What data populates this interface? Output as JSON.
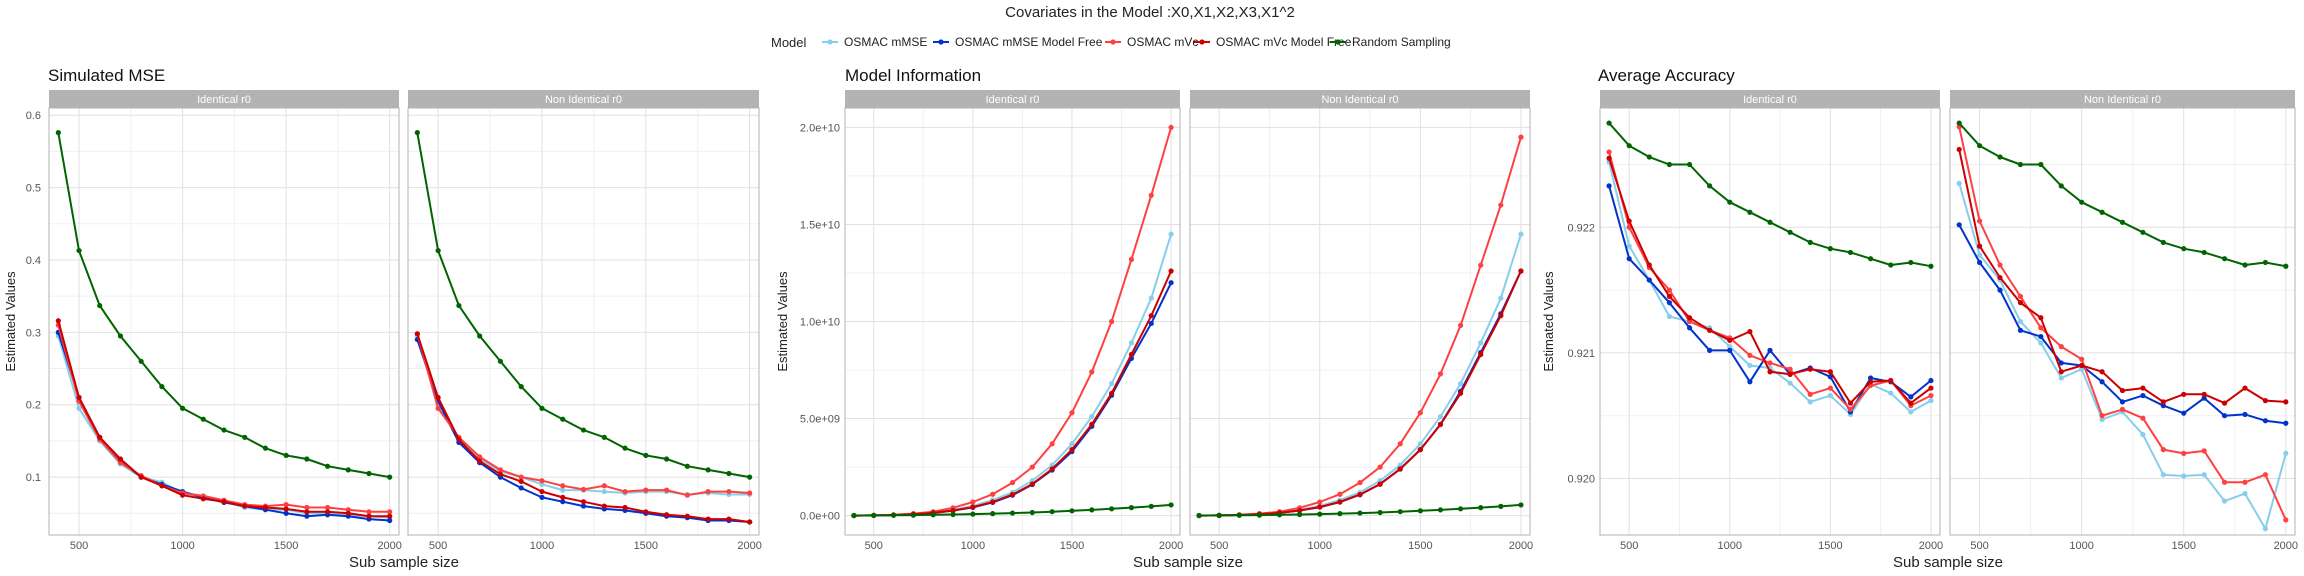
{
  "figure": {
    "title": "Covariates in the Model :X0,X1,X2,X3,X1^2",
    "legend_title": "Model",
    "series": [
      {
        "name": "OSMAC mMSE",
        "color": "#87ceeb"
      },
      {
        "name": "OSMAC mMSE Model Free",
        "color": "#0033cc"
      },
      {
        "name": "OSMAC mVc",
        "color": "#ff4040"
      },
      {
        "name": "OSMAC mVc Model Free",
        "color": "#cc0000"
      },
      {
        "name": "Random Sampling",
        "color": "#006400"
      }
    ]
  },
  "chart_data": [
    {
      "type": "line",
      "title": "Simulated MSE",
      "xlabel": "Sub sample size",
      "ylabel": "Estimated Values",
      "ylim": [
        0.02,
        0.61
      ],
      "yticks": [
        0.1,
        0.2,
        0.3,
        0.4,
        0.5,
        0.6
      ],
      "ytick_labels": [
        "0.1",
        "0.2",
        "0.3",
        "0.4",
        "0.5",
        "0.6"
      ],
      "xlim": [
        355,
        2045
      ],
      "xticks": [
        500,
        1000,
        1500,
        2000
      ],
      "x": [
        400,
        500,
        600,
        700,
        800,
        900,
        1000,
        1100,
        1200,
        1300,
        1400,
        1500,
        1600,
        1700,
        1800,
        1900,
        2000
      ],
      "facets": [
        {
          "strip": "Identical r0",
          "series": [
            {
              "name": "OSMAC mMSE",
              "values": [
                0.295,
                0.195,
                0.15,
                0.118,
                0.1,
                0.093,
                0.078,
                0.072,
                0.066,
                0.058,
                0.055,
                0.055,
                0.05,
                0.05,
                0.048,
                0.046,
                0.044
              ]
            },
            {
              "name": "OSMAC mMSE Model Free",
              "values": [
                0.3,
                0.21,
                0.155,
                0.122,
                0.1,
                0.09,
                0.08,
                0.072,
                0.065,
                0.06,
                0.055,
                0.05,
                0.046,
                0.048,
                0.046,
                0.042,
                0.04
              ]
            },
            {
              "name": "OSMAC mVc",
              "values": [
                0.31,
                0.205,
                0.152,
                0.12,
                0.102,
                0.088,
                0.078,
                0.074,
                0.068,
                0.062,
                0.06,
                0.062,
                0.058,
                0.058,
                0.055,
                0.052,
                0.052
              ]
            },
            {
              "name": "OSMAC mVc Model Free",
              "values": [
                0.316,
                0.21,
                0.155,
                0.125,
                0.1,
                0.088,
                0.075,
                0.07,
                0.066,
                0.06,
                0.058,
                0.056,
                0.052,
                0.052,
                0.05,
                0.046,
                0.046
              ]
            },
            {
              "name": "Random Sampling",
              "values": [
                0.576,
                0.413,
                0.337,
                0.295,
                0.26,
                0.225,
                0.195,
                0.18,
                0.165,
                0.155,
                0.14,
                0.13,
                0.125,
                0.115,
                0.11,
                0.105,
                0.1
              ]
            }
          ]
        },
        {
          "strip": "Non Identical r0",
          "series": [
            {
              "name": "OSMAC mMSE",
              "values": [
                0.295,
                0.2,
                0.15,
                0.125,
                0.108,
                0.1,
                0.09,
                0.082,
                0.082,
                0.08,
                0.078,
                0.08,
                0.08,
                0.076,
                0.078,
                0.076,
                0.076
              ]
            },
            {
              "name": "OSMAC mMSE Model Free",
              "values": [
                0.29,
                0.205,
                0.148,
                0.12,
                0.1,
                0.085,
                0.072,
                0.066,
                0.06,
                0.056,
                0.054,
                0.05,
                0.046,
                0.044,
                0.04,
                0.04,
                0.038
              ]
            },
            {
              "name": "OSMAC mVc",
              "values": [
                0.298,
                0.195,
                0.155,
                0.128,
                0.11,
                0.1,
                0.095,
                0.088,
                0.083,
                0.088,
                0.08,
                0.082,
                0.082,
                0.075,
                0.08,
                0.08,
                0.078
              ]
            },
            {
              "name": "OSMAC mVc Model Free",
              "values": [
                0.298,
                0.21,
                0.152,
                0.122,
                0.104,
                0.094,
                0.08,
                0.072,
                0.066,
                0.06,
                0.058,
                0.052,
                0.048,
                0.046,
                0.042,
                0.042,
                0.038
              ]
            },
            {
              "name": "Random Sampling",
              "values": [
                0.576,
                0.413,
                0.337,
                0.295,
                0.26,
                0.225,
                0.195,
                0.18,
                0.165,
                0.155,
                0.14,
                0.13,
                0.125,
                0.115,
                0.11,
                0.105,
                0.1
              ]
            }
          ]
        }
      ]
    },
    {
      "type": "line",
      "title": "Model Information",
      "xlabel": "Sub sample size",
      "ylabel": "Estimated Values",
      "ylim": [
        -1000000000.0,
        21000000000.0
      ],
      "yticks": [
        0,
        5000000000.0,
        10000000000.0,
        15000000000.0,
        20000000000.0
      ],
      "ytick_labels": [
        "0.0e+00",
        "5.0e+09",
        "1.0e+10",
        "1.5e+10",
        "2.0e+10"
      ],
      "xlim": [
        355,
        2045
      ],
      "xticks": [
        500,
        1000,
        1500,
        2000
      ],
      "x": [
        400,
        500,
        600,
        700,
        800,
        900,
        1000,
        1100,
        1200,
        1300,
        1400,
        1500,
        1600,
        1700,
        1800,
        1900,
        2000
      ],
      "facets": [
        {
          "strip": "Identical r0",
          "series": [
            {
              "name": "OSMAC mMSE",
              "values": [
                2000000.0,
                10000000.0,
                30000000.0,
                80000000.0,
                150000000.0,
                300000000.0,
                500000000.0,
                800000000.0,
                1200000000.0,
                1800000000.0,
                2600000000.0,
                3700000000.0,
                5100000000.0,
                6800000000.0,
                8900000000.0,
                11200000000.0,
                14500000000.0
              ]
            },
            {
              "name": "OSMAC mMSE Model Free",
              "values": [
                2000000.0,
                10000000.0,
                30000000.0,
                70000000.0,
                140000000.0,
                250000000.0,
                420000000.0,
                680000000.0,
                1050000000.0,
                1600000000.0,
                2350000000.0,
                3300000000.0,
                4600000000.0,
                6200000000.0,
                8100000000.0,
                9900000000.0,
                12000000000.0
              ]
            },
            {
              "name": "OSMAC mVc",
              "values": [
                2000000.0,
                12000000.0,
                40000000.0,
                100000000.0,
                200000000.0,
                400000000.0,
                700000000.0,
                1100000000.0,
                1700000000.0,
                2500000000.0,
                3700000000.0,
                5300000000.0,
                7400000000.0,
                10000000000.0,
                13200000000.0,
                16500000000.0,
                20000000000.0
              ]
            },
            {
              "name": "OSMAC mVc Model Free",
              "values": [
                2000000.0,
                10000000.0,
                30000000.0,
                70000000.0,
                140000000.0,
                260000000.0,
                440000000.0,
                700000000.0,
                1080000000.0,
                1620000000.0,
                2400000000.0,
                3400000000.0,
                4700000000.0,
                6300000000.0,
                8300000000.0,
                10300000000.0,
                12600000000.0
              ]
            },
            {
              "name": "Random Sampling",
              "values": [
                5000000.0,
                8000000.0,
                15000000.0,
                25000000.0,
                40000000.0,
                55000000.0,
                75000000.0,
                100000000.0,
                130000000.0,
                160000000.0,
                200000000.0,
                245000000.0,
                295000000.0,
                350000000.0,
                410000000.0,
                475000000.0,
                550000000.0
              ]
            }
          ]
        },
        {
          "strip": "Non Identical r0",
          "series": [
            {
              "name": "OSMAC mMSE",
              "values": [
                2000000.0,
                10000000.0,
                30000000.0,
                80000000.0,
                150000000.0,
                300000000.0,
                500000000.0,
                800000000.0,
                1200000000.0,
                1800000000.0,
                2600000000.0,
                3700000000.0,
                5100000000.0,
                6800000000.0,
                8900000000.0,
                11200000000.0,
                14500000000.0
              ]
            },
            {
              "name": "OSMAC mMSE Model Free",
              "values": [
                2000000.0,
                10000000.0,
                30000000.0,
                70000000.0,
                140000000.0,
                260000000.0,
                440000000.0,
                700000000.0,
                1080000000.0,
                1620000000.0,
                2400000000.0,
                3400000000.0,
                4700000000.0,
                6400000000.0,
                8400000000.0,
                10400000000.0,
                12600000000.0
              ]
            },
            {
              "name": "OSMAC mVc",
              "values": [
                2000000.0,
                12000000.0,
                40000000.0,
                100000000.0,
                200000000.0,
                400000000.0,
                700000000.0,
                1100000000.0,
                1700000000.0,
                2500000000.0,
                3700000000.0,
                5300000000.0,
                7300000000.0,
                9800000000.0,
                12900000000.0,
                16000000000.0,
                19500000000.0
              ]
            },
            {
              "name": "OSMAC mVc Model Free",
              "values": [
                2000000.0,
                10000000.0,
                30000000.0,
                70000000.0,
                140000000.0,
                260000000.0,
                440000000.0,
                700000000.0,
                1080000000.0,
                1620000000.0,
                2400000000.0,
                3400000000.0,
                4700000000.0,
                6300000000.0,
                8300000000.0,
                10300000000.0,
                12600000000.0
              ]
            },
            {
              "name": "Random Sampling",
              "values": [
                5000000.0,
                8000000.0,
                15000000.0,
                25000000.0,
                40000000.0,
                55000000.0,
                75000000.0,
                100000000.0,
                130000000.0,
                160000000.0,
                200000000.0,
                245000000.0,
                295000000.0,
                350000000.0,
                410000000.0,
                475000000.0,
                550000000.0
              ]
            }
          ]
        }
      ]
    },
    {
      "type": "line",
      "title": "Average Accuracy",
      "xlabel": "Sub sample size",
      "ylabel": "Estimated Values",
      "ylim": [
        0.91955,
        0.92295
      ],
      "yticks": [
        0.92,
        0.921,
        0.922
      ],
      "ytick_labels": [
        "0.920",
        "0.921",
        "0.922"
      ],
      "xlim": [
        355,
        2045
      ],
      "xticks": [
        500,
        1000,
        1500,
        2000
      ],
      "x": [
        400,
        500,
        600,
        700,
        800,
        900,
        1000,
        1100,
        1200,
        1300,
        1400,
        1500,
        1600,
        1700,
        1800,
        1900,
        2000
      ],
      "facets": [
        {
          "strip": "Identical r0",
          "series": [
            {
              "name": "OSMAC mMSE",
              "values": [
                0.92252,
                0.92185,
                0.92158,
                0.92129,
                0.92125,
                0.9212,
                0.92105,
                0.9209,
                0.92088,
                0.92076,
                0.92061,
                0.92066,
                0.92051,
                0.92075,
                0.92068,
                0.92053,
                0.92062
              ]
            },
            {
              "name": "OSMAC mMSE Model Free",
              "values": [
                0.92233,
                0.92175,
                0.92158,
                0.9214,
                0.9212,
                0.92102,
                0.92102,
                0.92077,
                0.92102,
                0.92083,
                0.92088,
                0.92081,
                0.92053,
                0.9208,
                0.92077,
                0.92065,
                0.92078
              ]
            },
            {
              "name": "OSMAC mVc",
              "values": [
                0.9226,
                0.922,
                0.92168,
                0.9215,
                0.92125,
                0.92118,
                0.92112,
                0.92098,
                0.92092,
                0.92087,
                0.92067,
                0.92072,
                0.92055,
                0.92074,
                0.92078,
                0.92058,
                0.92066
              ]
            },
            {
              "name": "OSMAC mVc Model Free",
              "values": [
                0.92255,
                0.92205,
                0.9217,
                0.92145,
                0.92128,
                0.92118,
                0.9211,
                0.92117,
                0.92085,
                0.92083,
                0.92087,
                0.92085,
                0.9206,
                0.92077,
                0.92078,
                0.9206,
                0.92072
              ]
            },
            {
              "name": "Random Sampling",
              "values": [
                0.92283,
                0.92265,
                0.92256,
                0.9225,
                0.9225,
                0.92233,
                0.9222,
                0.92212,
                0.92204,
                0.92196,
                0.92188,
                0.92183,
                0.9218,
                0.92175,
                0.9217,
                0.92172,
                0.92169
              ]
            }
          ]
        },
        {
          "strip": "Non Identical r0",
          "series": [
            {
              "name": "OSMAC mMSE",
              "values": [
                0.92235,
                0.92178,
                0.92158,
                0.92125,
                0.92108,
                0.9208,
                0.92087,
                0.92047,
                0.92053,
                0.92035,
                0.92003,
                0.92002,
                0.92003,
                0.91982,
                0.91988,
                0.9196,
                0.9202
              ]
            },
            {
              "name": "OSMAC mMSE Model Free",
              "values": [
                0.92202,
                0.92172,
                0.9215,
                0.92118,
                0.92113,
                0.92092,
                0.9209,
                0.92077,
                0.92061,
                0.92066,
                0.92058,
                0.92052,
                0.92064,
                0.9205,
                0.92051,
                0.92046,
                0.92044
              ]
            },
            {
              "name": "OSMAC mVc",
              "values": [
                0.9228,
                0.92205,
                0.9217,
                0.92145,
                0.9212,
                0.92105,
                0.92095,
                0.9205,
                0.92055,
                0.92048,
                0.92023,
                0.9202,
                0.92022,
                0.91997,
                0.91997,
                0.92003,
                0.91967
              ]
            },
            {
              "name": "OSMAC mVc Model Free",
              "values": [
                0.92262,
                0.92185,
                0.9216,
                0.9214,
                0.92128,
                0.92085,
                0.9209,
                0.92085,
                0.9207,
                0.92072,
                0.92061,
                0.92067,
                0.92067,
                0.9206,
                0.92072,
                0.92062,
                0.92061
              ]
            },
            {
              "name": "Random Sampling",
              "values": [
                0.92283,
                0.92265,
                0.92256,
                0.9225,
                0.9225,
                0.92233,
                0.9222,
                0.92212,
                0.92204,
                0.92196,
                0.92188,
                0.92183,
                0.9218,
                0.92175,
                0.9217,
                0.92172,
                0.92169
              ]
            }
          ]
        }
      ]
    }
  ]
}
